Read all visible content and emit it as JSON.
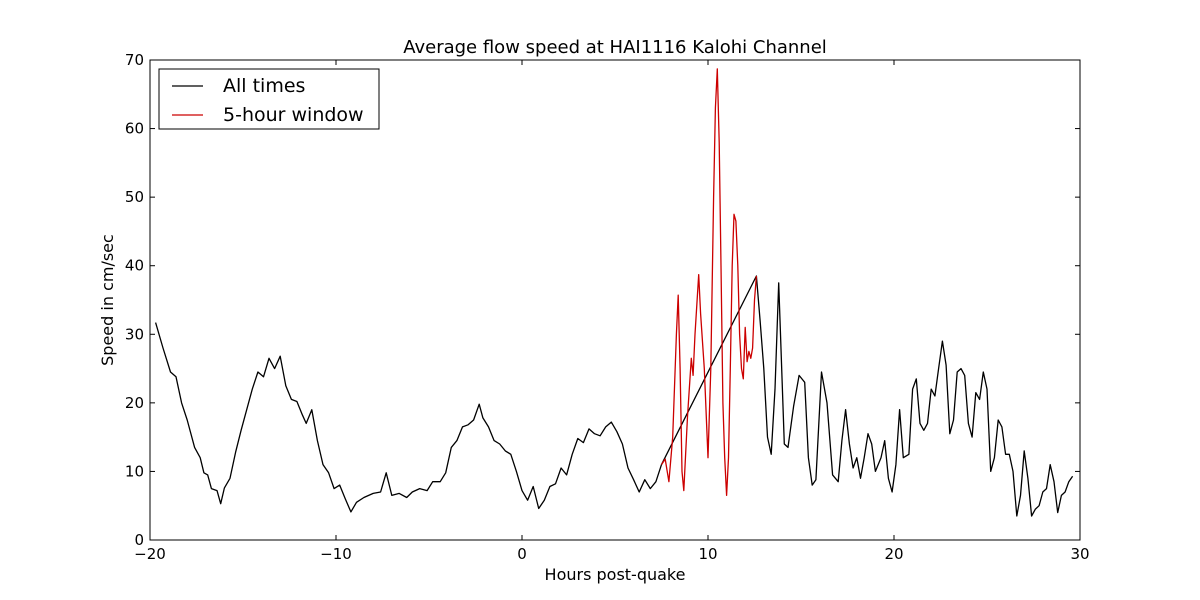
{
  "chart_data": {
    "type": "line",
    "title": "Average flow speed at HAI1116   Kalohi Channel",
    "xlabel": "Hours post-quake",
    "ylabel": "Speed in cm/sec",
    "xlim": [
      -20,
      30
    ],
    "ylim": [
      0,
      70
    ],
    "xticks": [
      -20,
      -10,
      0,
      10,
      20,
      30
    ],
    "yticks": [
      0,
      10,
      20,
      30,
      40,
      50,
      60,
      70
    ],
    "xtick_labels": [
      "−20",
      "−10",
      "0",
      "10",
      "20",
      "30"
    ],
    "ytick_labels": [
      "0",
      "10",
      "20",
      "30",
      "40",
      "50",
      "60",
      "70"
    ],
    "grid": false,
    "legend": "top-left",
    "series": [
      {
        "name": "All times",
        "color": "#000000",
        "points": [
          [
            -19.7,
            31.7
          ],
          [
            -19.3,
            28.0
          ],
          [
            -18.9,
            24.5
          ],
          [
            -18.6,
            23.8
          ],
          [
            -18.3,
            20.0
          ],
          [
            -18.0,
            17.5
          ],
          [
            -17.6,
            13.5
          ],
          [
            -17.3,
            12.0
          ],
          [
            -17.1,
            9.8
          ],
          [
            -16.9,
            9.5
          ],
          [
            -16.7,
            7.5
          ],
          [
            -16.4,
            7.2
          ],
          [
            -16.2,
            5.3
          ],
          [
            -16.0,
            7.6
          ],
          [
            -15.7,
            9.0
          ],
          [
            -15.4,
            12.8
          ],
          [
            -15.1,
            16.0
          ],
          [
            -14.8,
            19.0
          ],
          [
            -14.5,
            22.0
          ],
          [
            -14.2,
            24.5
          ],
          [
            -13.9,
            23.8
          ],
          [
            -13.6,
            26.5
          ],
          [
            -13.3,
            25.0
          ],
          [
            -13.0,
            26.8
          ],
          [
            -12.7,
            22.5
          ],
          [
            -12.4,
            20.5
          ],
          [
            -12.1,
            20.2
          ],
          [
            -11.8,
            18.2
          ],
          [
            -11.6,
            17.0
          ],
          [
            -11.3,
            19.0
          ],
          [
            -11.0,
            14.5
          ],
          [
            -10.7,
            11.0
          ],
          [
            -10.4,
            9.8
          ],
          [
            -10.1,
            7.5
          ],
          [
            -9.8,
            8.0
          ],
          [
            -9.5,
            6.0
          ],
          [
            -9.2,
            4.1
          ],
          [
            -8.9,
            5.5
          ],
          [
            -8.5,
            6.2
          ],
          [
            -8.0,
            6.8
          ],
          [
            -7.6,
            7.0
          ],
          [
            -7.3,
            9.8
          ],
          [
            -7.0,
            6.5
          ],
          [
            -6.6,
            6.8
          ],
          [
            -6.2,
            6.2
          ],
          [
            -5.9,
            7.0
          ],
          [
            -5.5,
            7.5
          ],
          [
            -5.1,
            7.2
          ],
          [
            -4.8,
            8.5
          ],
          [
            -4.4,
            8.5
          ],
          [
            -4.1,
            9.8
          ],
          [
            -3.8,
            13.5
          ],
          [
            -3.5,
            14.5
          ],
          [
            -3.2,
            16.5
          ],
          [
            -2.9,
            16.8
          ],
          [
            -2.6,
            17.5
          ],
          [
            -2.3,
            19.8
          ],
          [
            -2.1,
            17.8
          ],
          [
            -1.8,
            16.5
          ],
          [
            -1.5,
            14.5
          ],
          [
            -1.2,
            14.0
          ],
          [
            -0.9,
            13.0
          ],
          [
            -0.6,
            12.5
          ],
          [
            -0.3,
            10.0
          ],
          [
            0.0,
            7.2
          ],
          [
            0.3,
            5.8
          ],
          [
            0.6,
            7.8
          ],
          [
            0.9,
            4.6
          ],
          [
            1.2,
            5.8
          ],
          [
            1.5,
            7.8
          ],
          [
            1.8,
            8.2
          ],
          [
            2.1,
            10.5
          ],
          [
            2.4,
            9.5
          ],
          [
            2.7,
            12.5
          ],
          [
            3.0,
            14.8
          ],
          [
            3.3,
            14.2
          ],
          [
            3.6,
            16.2
          ],
          [
            3.9,
            15.5
          ],
          [
            4.2,
            15.2
          ],
          [
            4.5,
            16.5
          ],
          [
            4.8,
            17.2
          ],
          [
            5.1,
            15.8
          ],
          [
            5.4,
            14.0
          ],
          [
            5.7,
            10.5
          ],
          [
            6.0,
            8.8
          ],
          [
            6.3,
            7.0
          ],
          [
            6.6,
            8.8
          ],
          [
            6.9,
            7.5
          ],
          [
            7.2,
            8.5
          ],
          [
            7.5,
            11.0
          ],
          [
            12.6,
            38.5
          ],
          [
            12.8,
            32.0
          ],
          [
            13.0,
            25.0
          ],
          [
            13.2,
            15.0
          ],
          [
            13.4,
            12.5
          ],
          [
            13.6,
            22.0
          ],
          [
            13.8,
            37.5
          ],
          [
            13.9,
            30.0
          ],
          [
            14.1,
            14.0
          ],
          [
            14.3,
            13.5
          ],
          [
            14.6,
            19.5
          ],
          [
            14.9,
            24.0
          ],
          [
            15.2,
            23.0
          ],
          [
            15.4,
            12.0
          ],
          [
            15.6,
            8.0
          ],
          [
            15.8,
            8.8
          ],
          [
            16.1,
            24.5
          ],
          [
            16.4,
            20.0
          ],
          [
            16.7,
            9.5
          ],
          [
            17.0,
            8.5
          ],
          [
            17.2,
            14.5
          ],
          [
            17.4,
            19.0
          ],
          [
            17.6,
            14.0
          ],
          [
            17.8,
            10.5
          ],
          [
            18.0,
            12.0
          ],
          [
            18.2,
            9.0
          ],
          [
            18.4,
            12.0
          ],
          [
            18.6,
            15.5
          ],
          [
            18.8,
            14.0
          ],
          [
            19.0,
            10.0
          ],
          [
            19.3,
            12.0
          ],
          [
            19.5,
            14.5
          ],
          [
            19.7,
            9.0
          ],
          [
            19.9,
            7.0
          ],
          [
            20.1,
            11.0
          ],
          [
            20.3,
            19.0
          ],
          [
            20.5,
            12.0
          ],
          [
            20.8,
            12.5
          ],
          [
            21.0,
            22.0
          ],
          [
            21.2,
            23.5
          ],
          [
            21.4,
            17.0
          ],
          [
            21.6,
            16.0
          ],
          [
            21.8,
            17.0
          ],
          [
            22.0,
            22.0
          ],
          [
            22.2,
            21.0
          ],
          [
            22.4,
            25.0
          ],
          [
            22.6,
            29.0
          ],
          [
            22.8,
            25.5
          ],
          [
            23.0,
            15.5
          ],
          [
            23.2,
            17.5
          ],
          [
            23.4,
            24.5
          ],
          [
            23.6,
            25.0
          ],
          [
            23.8,
            24.0
          ],
          [
            24.0,
            17.0
          ],
          [
            24.2,
            15.0
          ],
          [
            24.4,
            21.5
          ],
          [
            24.6,
            20.5
          ],
          [
            24.8,
            24.5
          ],
          [
            25.0,
            22.0
          ],
          [
            25.2,
            10.0
          ],
          [
            25.4,
            12.0
          ],
          [
            25.6,
            17.5
          ],
          [
            25.8,
            16.5
          ],
          [
            26.0,
            12.5
          ],
          [
            26.2,
            12.5
          ],
          [
            26.4,
            10.0
          ],
          [
            26.6,
            3.5
          ],
          [
            26.8,
            6.5
          ],
          [
            27.0,
            13.0
          ],
          [
            27.2,
            9.0
          ],
          [
            27.4,
            3.5
          ],
          [
            27.6,
            4.5
          ],
          [
            27.8,
            5.0
          ],
          [
            28.0,
            7.0
          ],
          [
            28.2,
            7.5
          ],
          [
            28.4,
            11.0
          ],
          [
            28.6,
            8.5
          ],
          [
            28.8,
            4.0
          ],
          [
            29.0,
            6.5
          ],
          [
            29.2,
            7.0
          ],
          [
            29.4,
            8.5
          ],
          [
            29.6,
            9.3
          ]
        ]
      },
      {
        "name": "5-hour window",
        "color": "#cc0000",
        "points": [
          [
            7.5,
            11.0
          ],
          [
            7.7,
            11.8
          ],
          [
            7.9,
            8.5
          ],
          [
            8.1,
            15.0
          ],
          [
            8.3,
            30.0
          ],
          [
            8.4,
            35.7
          ],
          [
            8.5,
            25.0
          ],
          [
            8.6,
            10.0
          ],
          [
            8.7,
            7.2
          ],
          [
            8.9,
            18.0
          ],
          [
            9.1,
            26.5
          ],
          [
            9.2,
            24.0
          ],
          [
            9.3,
            30.0
          ],
          [
            9.5,
            38.7
          ],
          [
            9.6,
            33.0
          ],
          [
            9.8,
            25.0
          ],
          [
            10.0,
            12.0
          ],
          [
            10.15,
            25.0
          ],
          [
            10.3,
            50.0
          ],
          [
            10.4,
            63.0
          ],
          [
            10.5,
            68.7
          ],
          [
            10.6,
            58.0
          ],
          [
            10.7,
            40.0
          ],
          [
            10.8,
            20.0
          ],
          [
            10.9,
            12.0
          ],
          [
            11.0,
            6.5
          ],
          [
            11.1,
            12.0
          ],
          [
            11.2,
            25.0
          ],
          [
            11.3,
            40.0
          ],
          [
            11.4,
            47.5
          ],
          [
            11.5,
            46.5
          ],
          [
            11.6,
            40.0
          ],
          [
            11.7,
            30.0
          ],
          [
            11.8,
            25.0
          ],
          [
            11.9,
            23.5
          ],
          [
            12.0,
            31.0
          ],
          [
            12.1,
            26.0
          ],
          [
            12.2,
            27.5
          ],
          [
            12.3,
            26.5
          ],
          [
            12.4,
            28.0
          ],
          [
            12.5,
            35.0
          ],
          [
            12.6,
            38.5
          ]
        ]
      }
    ]
  }
}
